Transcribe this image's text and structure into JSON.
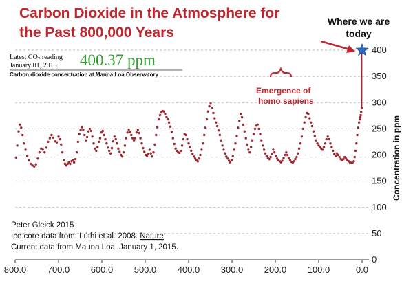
{
  "chart_data": {
    "type": "scatter",
    "title_lines": [
      "Carbon Dioxide in the Atmosphere for",
      "the Past 800,000 Years"
    ],
    "ylabel": "Concentration in ppm",
    "xlim": [
      800,
      0
    ],
    "ylim": [
      0,
      400
    ],
    "x_ticks": [
      "800.0",
      "700.0",
      "600.0",
      "500.0",
      "400.0",
      "300.0",
      "200.0",
      "100.0",
      "0.0"
    ],
    "x_tick_values": [
      800,
      700,
      600,
      500,
      400,
      300,
      200,
      100,
      0
    ],
    "y_ticks": [
      "0",
      "50",
      "100",
      "150",
      "200",
      "250",
      "300",
      "350",
      "400"
    ],
    "y_tick_values": [
      0,
      50,
      100,
      150,
      200,
      250,
      300,
      350,
      400
    ],
    "grid": true,
    "series": [
      {
        "color": "#9b2a32",
        "points": [
          [
            798,
            195
          ],
          [
            795,
            218
          ],
          [
            792,
            245
          ],
          [
            789,
            258
          ],
          [
            786,
            252
          ],
          [
            783,
            238
          ],
          [
            780,
            222
          ],
          [
            776,
            210
          ],
          [
            772,
            198
          ],
          [
            768,
            190
          ],
          [
            764,
            183
          ],
          [
            760,
            180
          ],
          [
            756,
            178
          ],
          [
            752,
            182
          ],
          [
            748,
            193
          ],
          [
            744,
            205
          ],
          [
            740,
            212
          ],
          [
            736,
            210
          ],
          [
            732,
            205
          ],
          [
            728,
            214
          ],
          [
            724,
            225
          ],
          [
            720,
            232
          ],
          [
            716,
            238
          ],
          [
            712,
            233
          ],
          [
            708,
            226
          ],
          [
            704,
            224
          ],
          [
            700,
            235
          ],
          [
            697,
            230
          ],
          [
            694,
            220
          ],
          [
            691,
            205
          ],
          [
            688,
            190
          ],
          [
            685,
            183
          ],
          [
            682,
            180
          ],
          [
            679,
            183
          ],
          [
            676,
            186
          ],
          [
            673,
            183
          ],
          [
            670,
            188
          ],
          [
            667,
            190
          ],
          [
            664,
            186
          ],
          [
            661,
            192
          ],
          [
            658,
            205
          ],
          [
            655,
            225
          ],
          [
            652,
            240
          ],
          [
            649,
            248
          ],
          [
            646,
            253
          ],
          [
            643,
            248
          ],
          [
            640,
            238
          ],
          [
            637,
            228
          ],
          [
            634,
            234
          ],
          [
            631,
            245
          ],
          [
            628,
            250
          ],
          [
            625,
            246
          ],
          [
            622,
            235
          ],
          [
            619,
            222
          ],
          [
            616,
            212
          ],
          [
            613,
            208
          ],
          [
            610,
            215
          ],
          [
            607,
            225
          ],
          [
            604,
            232
          ],
          [
            601,
            243
          ],
          [
            598,
            246
          ],
          [
            595,
            238
          ],
          [
            592,
            230
          ],
          [
            589,
            222
          ],
          [
            586,
            214
          ],
          [
            583,
            208
          ],
          [
            580,
            203
          ],
          [
            577,
            213
          ],
          [
            574,
            226
          ],
          [
            571,
            235
          ],
          [
            568,
            230
          ],
          [
            565,
            222
          ],
          [
            562,
            212
          ],
          [
            559,
            206
          ],
          [
            556,
            200
          ],
          [
            553,
            197
          ],
          [
            550,
            205
          ],
          [
            547,
            218
          ],
          [
            544,
            232
          ],
          [
            541,
            243
          ],
          [
            538,
            248
          ],
          [
            535,
            244
          ],
          [
            532,
            238
          ],
          [
            529,
            232
          ],
          [
            526,
            228
          ],
          [
            523,
            232
          ],
          [
            520,
            243
          ],
          [
            517,
            248
          ],
          [
            514,
            242
          ],
          [
            511,
            232
          ],
          [
            508,
            222
          ],
          [
            505,
            213
          ],
          [
            502,
            206
          ],
          [
            499,
            200
          ],
          [
            496,
            198
          ],
          [
            493,
            202
          ],
          [
            490,
            210
          ],
          [
            487,
            203
          ],
          [
            484,
            197
          ],
          [
            481,
            205
          ],
          [
            478,
            220
          ],
          [
            475,
            238
          ],
          [
            472,
            253
          ],
          [
            469,
            268
          ],
          [
            466,
            276
          ],
          [
            463,
            281
          ],
          [
            460,
            284
          ],
          [
            457,
            283
          ],
          [
            454,
            278
          ],
          [
            451,
            272
          ],
          [
            448,
            268
          ],
          [
            445,
            262
          ],
          [
            442,
            254
          ],
          [
            439,
            244
          ],
          [
            436,
            232
          ],
          [
            433,
            221
          ],
          [
            430,
            212
          ],
          [
            427,
            208
          ],
          [
            424,
            205
          ],
          [
            421,
            204
          ],
          [
            418,
            208
          ],
          [
            415,
            218
          ],
          [
            412,
            230
          ],
          [
            409,
            240
          ],
          [
            406,
            238
          ],
          [
            403,
            230
          ],
          [
            400,
            222
          ],
          [
            397,
            215
          ],
          [
            394,
            208
          ],
          [
            391,
            202
          ],
          [
            388,
            197
          ],
          [
            385,
            193
          ],
          [
            382,
            190
          ],
          [
            379,
            188
          ],
          [
            376,
            193
          ],
          [
            373,
            200
          ],
          [
            370,
            210
          ],
          [
            367,
            222
          ],
          [
            364,
            238
          ],
          [
            361,
            252
          ],
          [
            358,
            268
          ],
          [
            355,
            283
          ],
          [
            352,
            293
          ],
          [
            349,
            298
          ],
          [
            346,
            290
          ],
          [
            343,
            280
          ],
          [
            340,
            270
          ],
          [
            337,
            262
          ],
          [
            334,
            255
          ],
          [
            331,
            247
          ],
          [
            328,
            238
          ],
          [
            325,
            228
          ],
          [
            322,
            218
          ],
          [
            319,
            210
          ],
          [
            316,
            203
          ],
          [
            313,
            197
          ],
          [
            310,
            193
          ],
          [
            307,
            189
          ],
          [
            304,
            186
          ],
          [
            301,
            190
          ],
          [
            298,
            198
          ],
          [
            295,
            210
          ],
          [
            292,
            222
          ],
          [
            289,
            236
          ],
          [
            286,
            252
          ],
          [
            283,
            265
          ],
          [
            280,
            278
          ],
          [
            277,
            272
          ],
          [
            274,
            258
          ],
          [
            271,
            245
          ],
          [
            268,
            232
          ],
          [
            265,
            220
          ],
          [
            262,
            210
          ],
          [
            259,
            205
          ],
          [
            256,
            215
          ],
          [
            253,
            228
          ],
          [
            250,
            240
          ],
          [
            247,
            250
          ],
          [
            244,
            256
          ],
          [
            241,
            258
          ],
          [
            238,
            250
          ],
          [
            235,
            240
          ],
          [
            232,
            228
          ],
          [
            229,
            218
          ],
          [
            226,
            210
          ],
          [
            223,
            203
          ],
          [
            220,
            198
          ],
          [
            217,
            194
          ],
          [
            214,
            192
          ],
          [
            211,
            196
          ],
          [
            208,
            202
          ],
          [
            205,
            210
          ],
          [
            202,
            205
          ],
          [
            199,
            198
          ],
          [
            196,
            193
          ],
          [
            193,
            190
          ],
          [
            190,
            188
          ],
          [
            187,
            186
          ],
          [
            184,
            189
          ],
          [
            181,
            194
          ],
          [
            178,
            200
          ],
          [
            175,
            205
          ],
          [
            172,
            200
          ],
          [
            169,
            194
          ],
          [
            166,
            190
          ],
          [
            163,
            187
          ],
          [
            160,
            185
          ],
          [
            157,
            188
          ],
          [
            154,
            192
          ],
          [
            151,
            196
          ],
          [
            148,
            203
          ],
          [
            145,
            212
          ],
          [
            142,
            222
          ],
          [
            139,
            235
          ],
          [
            136,
            250
          ],
          [
            133,
            262
          ],
          [
            130,
            272
          ],
          [
            127,
            280
          ],
          [
            124,
            278
          ],
          [
            121,
            270
          ],
          [
            118,
            262
          ],
          [
            115,
            255
          ],
          [
            112,
            245
          ],
          [
            109,
            236
          ],
          [
            106,
            228
          ],
          [
            103,
            222
          ],
          [
            100,
            218
          ],
          [
            97,
            215
          ],
          [
            94,
            212
          ],
          [
            91,
            210
          ],
          [
            88,
            215
          ],
          [
            85,
            222
          ],
          [
            82,
            230
          ],
          [
            79,
            235
          ],
          [
            76,
            230
          ],
          [
            73,
            222
          ],
          [
            70,
            215
          ],
          [
            67,
            208
          ],
          [
            64,
            202
          ],
          [
            61,
            198
          ],
          [
            58,
            203
          ],
          [
            55,
            200
          ],
          [
            52,
            196
          ],
          [
            49,
            192
          ],
          [
            46,
            190
          ],
          [
            43,
            192
          ],
          [
            40,
            196
          ],
          [
            37,
            193
          ],
          [
            34,
            190
          ],
          [
            31,
            188
          ],
          [
            28,
            186
          ],
          [
            25,
            185
          ],
          [
            22,
            185
          ],
          [
            19,
            188
          ],
          [
            17,
            196
          ],
          [
            15,
            208
          ],
          [
            13,
            222
          ],
          [
            11,
            238
          ],
          [
            9,
            252
          ],
          [
            7,
            262
          ],
          [
            5,
            268
          ],
          [
            4,
            272
          ],
          [
            3,
            276
          ],
          [
            2,
            282
          ],
          [
            1,
            290
          ]
        ]
      }
    ],
    "annotations": {
      "latest_line1": "Latest CO",
      "latest_sub": "2",
      "latest_line1_end": " reading",
      "latest_line2": "January 01, 2015",
      "latest_value": "400.37 ppm",
      "mauna_loa_label": "Carbon dioxide concentration at Mauna Loa Observatory",
      "emergence": [
        "Emergence of",
        "homo sapiens"
      ],
      "today": [
        "Where we are",
        "today"
      ],
      "credit_line1": "Peter Gleick 2015",
      "credit_line2_prefix": "Ice core data from: Lüthi et al. 2008. ",
      "credit_line2_journal": "Nature",
      "credit_line2_suffix": ".",
      "credit_line3": "Current data from Mauna Loa, January 1, 2015."
    },
    "spike_x": 1,
    "spike_y_from": 290,
    "spike_y_to": 400,
    "star_x": 0,
    "star_y": 400,
    "colors": {
      "title": "#c0262d",
      "data": "#9b2a32",
      "star": "#2e6fbf",
      "value": "#2e9e2e",
      "grid": "#b9b9b9"
    }
  }
}
